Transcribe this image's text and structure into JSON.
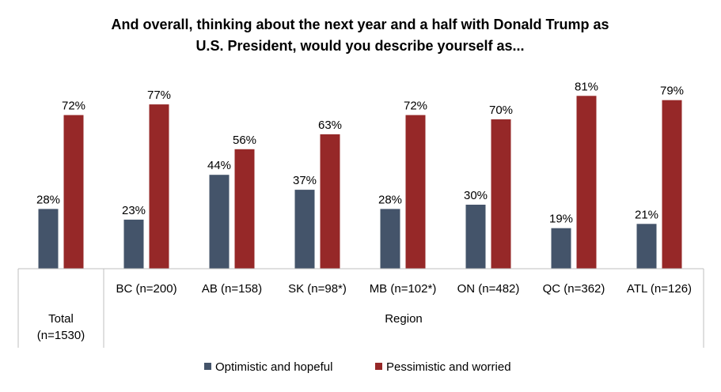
{
  "chart_data": {
    "type": "bar",
    "title_lines": [
      "And overall, thinking about the next year and a half with Donald Trump as",
      "U.S. President, would you describe yourself as..."
    ],
    "categories": [
      "Total (n=1530)",
      "BC (n=200)",
      "AB (n=158)",
      "SK (n=98*)",
      "MB (n=102*)",
      "ON (n=482)",
      "QC (n=362)",
      "ATL (n=126)"
    ],
    "category_lines": [
      [
        "Total",
        "(n=1530)"
      ],
      [
        "BC (n=200)"
      ],
      [
        "AB (n=158)"
      ],
      [
        "SK (n=98*)"
      ],
      [
        "MB (n=102*)"
      ],
      [
        "ON (n=482)"
      ],
      [
        "QC (n=362)"
      ],
      [
        "ATL (n=126)"
      ]
    ],
    "group_label": "Region",
    "series": [
      {
        "name": "Optimistic and hopeful",
        "color": "#44546a",
        "values": [
          28,
          23,
          44,
          37,
          28,
          30,
          19,
          21
        ]
      },
      {
        "name": "Pessimistic and worried",
        "color": "#962828",
        "values": [
          72,
          77,
          56,
          63,
          72,
          70,
          81,
          79
        ]
      }
    ],
    "value_suffix": "%",
    "ylim": [
      0,
      100
    ],
    "legend_position": "bottom",
    "grid": false
  }
}
